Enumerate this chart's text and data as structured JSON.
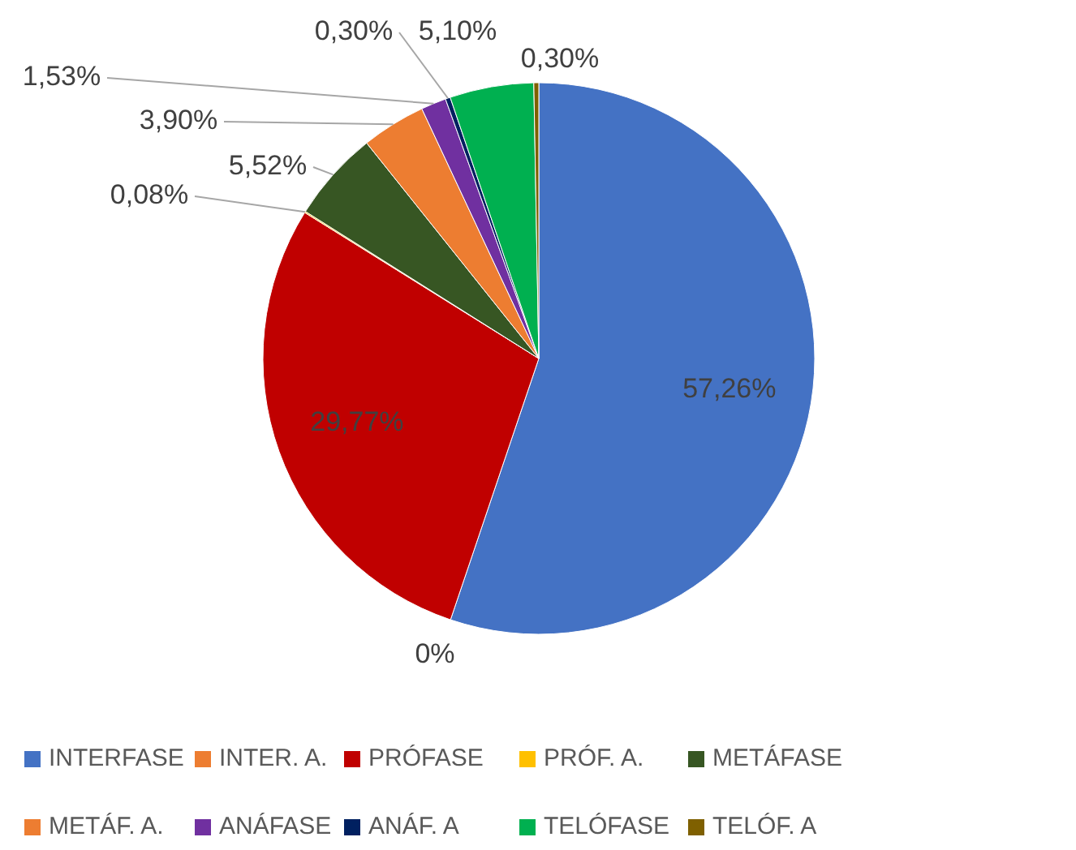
{
  "chart_data": {
    "type": "pie",
    "categories": [
      "INTERFASE",
      "INTER. A.",
      "PRÓFASE",
      "PRÓF. A.",
      "METÁFASE",
      "METÁF. A.",
      "ANÁFASE",
      "ANÁF. A",
      "TELÓFASE",
      "TELÓF. A"
    ],
    "values": [
      57.26,
      0,
      29.77,
      0.08,
      5.52,
      3.9,
      1.53,
      0.3,
      5.1,
      0.3
    ],
    "value_labels": [
      "57,26%",
      "0%",
      "29,77%",
      "0,08%",
      "5,52%",
      "3,90%",
      "1,53%",
      "0,30%",
      "5,10%",
      "0,30%"
    ],
    "colors": [
      "#4472c4",
      "#ed7d31",
      "#c00000",
      "#ffc000",
      "#375623",
      "#ed7d31",
      "#7030a0",
      "#002060",
      "#00b050",
      "#7f6000"
    ],
    "legend": "bottom"
  }
}
